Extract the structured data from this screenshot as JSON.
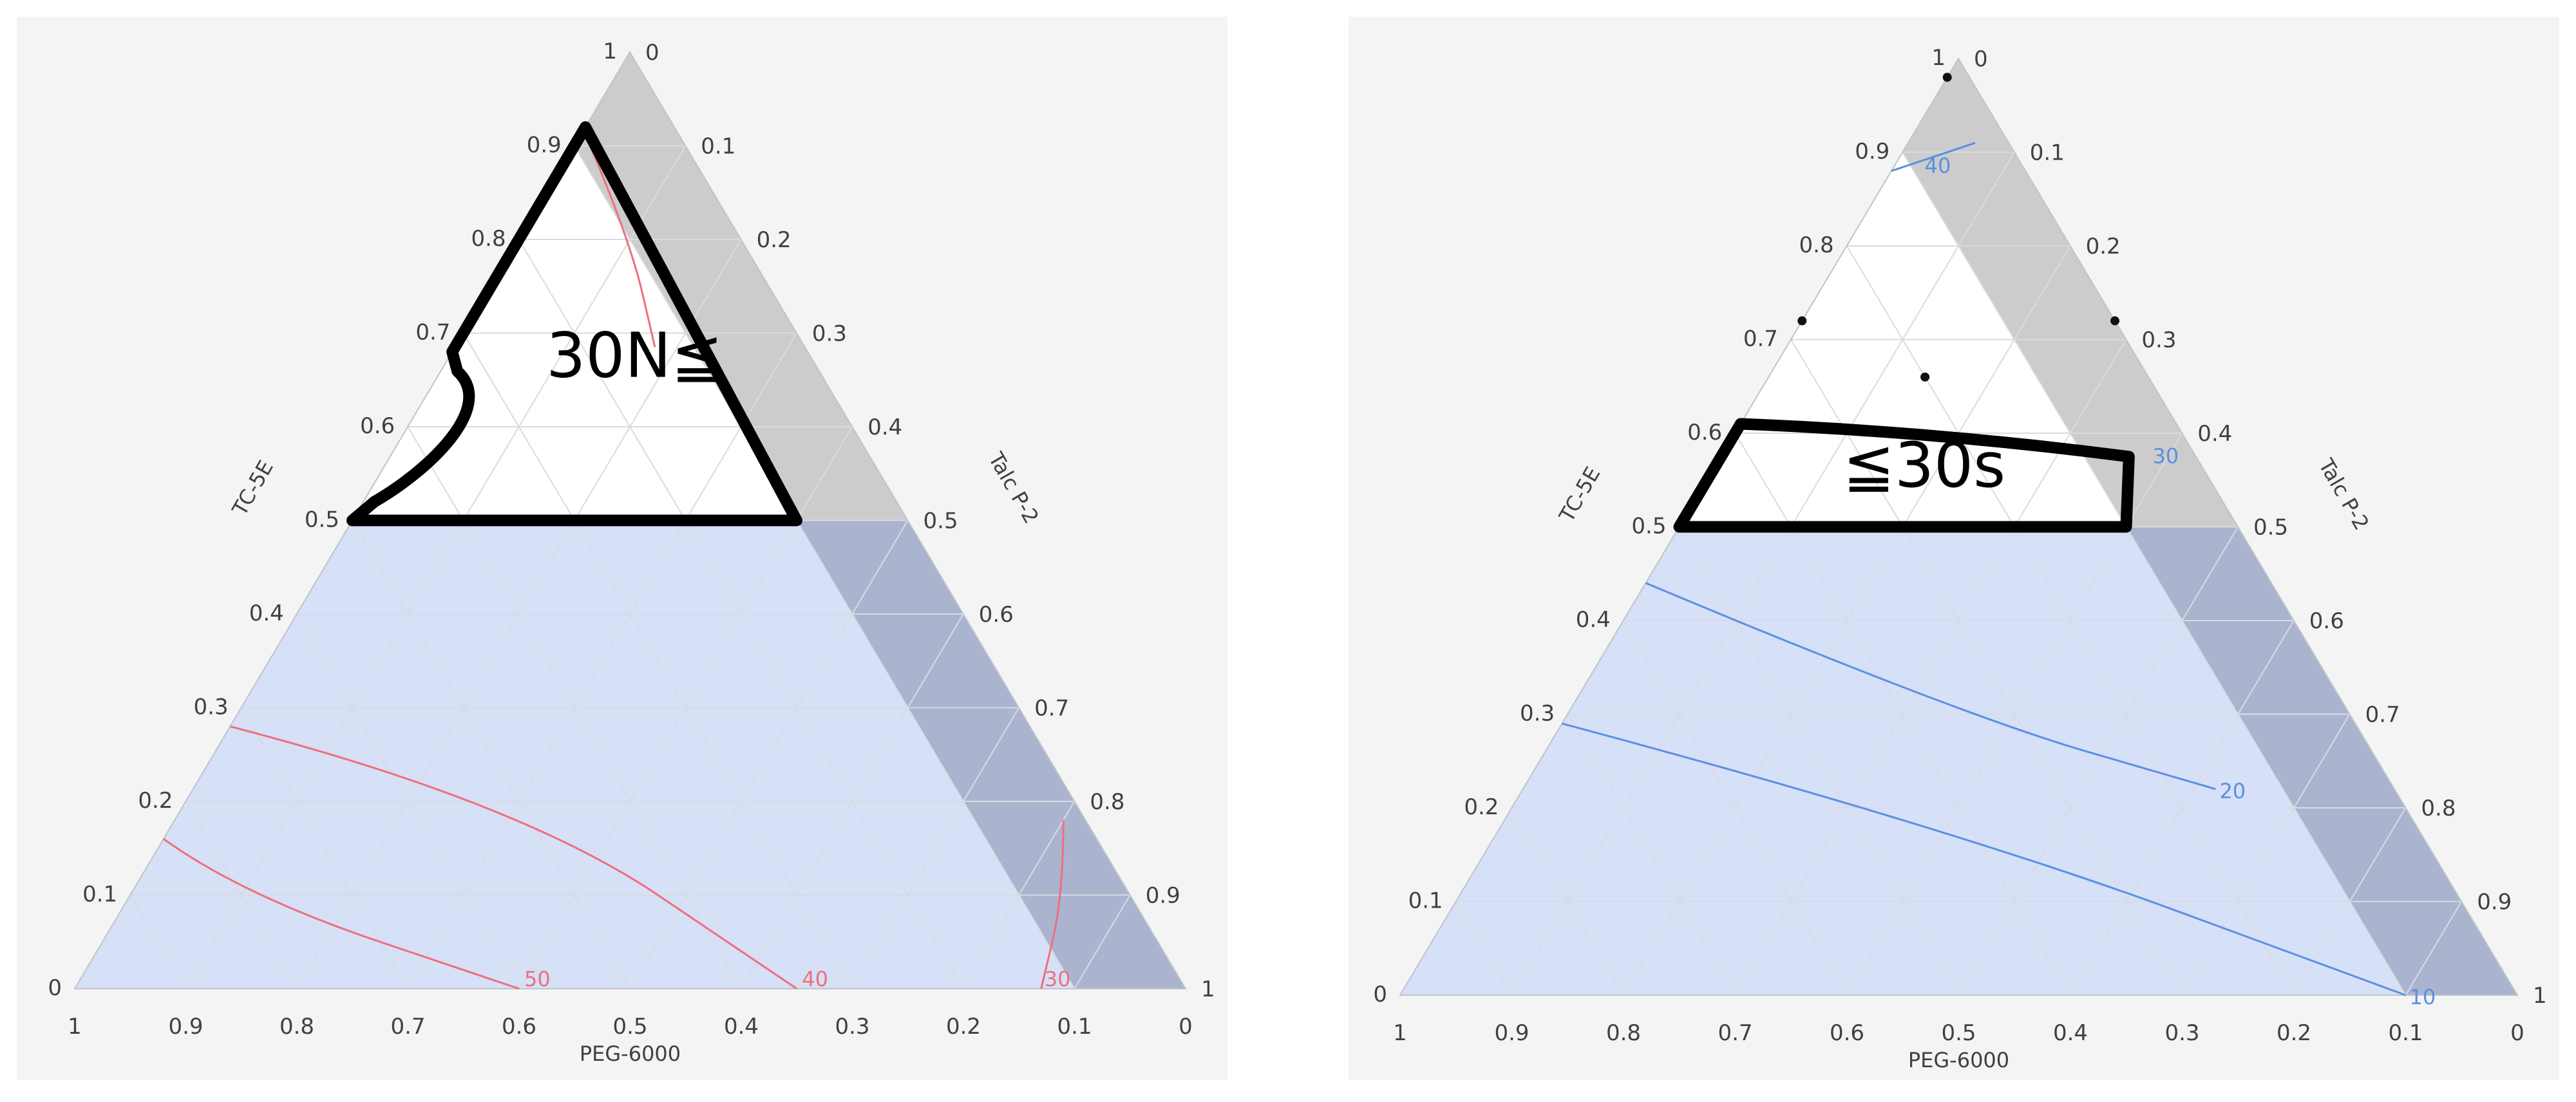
{
  "chart_data": [
    {
      "type": "ternary-contour",
      "axes": {
        "left": {
          "label": "TC-5E",
          "ticks": [
            "0",
            "0.1",
            "0.2",
            "0.3",
            "0.4",
            "0.5",
            "0.6",
            "0.7",
            "0.8",
            "0.9",
            "1"
          ]
        },
        "right": {
          "label": "Talc P-2",
          "ticks": [
            "0",
            "0.1",
            "0.2",
            "0.3",
            "0.4",
            "0.5",
            "0.6",
            "0.7",
            "0.8",
            "0.9",
            "1"
          ]
        },
        "bottom": {
          "label": "PEG-6000",
          "ticks": [
            "1",
            "0.9",
            "0.8",
            "0.7",
            "0.6",
            "0.5",
            "0.4",
            "0.3",
            "0.2",
            "0.1",
            "0"
          ]
        }
      },
      "grid": true,
      "shaded_region": {
        "description": "TC-5E ≤ 0.5",
        "color": "#d6e0f7"
      },
      "excluded_band": {
        "talc_min": 0.9,
        "color": "#c8c8c8"
      },
      "contour_color": "#ee6f7d",
      "contours": [
        {
          "level": "50",
          "points": [
            {
              "tc5e": 0.16,
              "talc": 0.0
            },
            {
              "tc5e": 0.1,
              "talc": 0.1
            },
            {
              "tc5e": 0.0,
              "talc": 0.4
            }
          ]
        },
        {
          "level": "40",
          "points": [
            {
              "tc5e": 0.28,
              "talc": 0.0
            },
            {
              "tc5e": 0.2,
              "talc": 0.3
            },
            {
              "tc5e": 0.0,
              "talc": 0.65
            }
          ]
        },
        {
          "level": "40",
          "points": [
            {
              "tc5e": 0.905,
              "talc": 0.01
            },
            {
              "tc5e": 0.8,
              "talc": 0.1
            },
            {
              "tc5e": 0.685,
              "talc": 0.18
            }
          ]
        },
        {
          "level": "30",
          "points": [
            {
              "tc5e": 0.18,
              "talc": 0.8
            },
            {
              "tc5e": 0.1,
              "talc": 0.84
            },
            {
              "tc5e": 0.0,
              "talc": 0.87
            }
          ]
        }
      ],
      "contour_labels": [
        "50",
        "40",
        "30"
      ],
      "highlight_region": {
        "label": "30N≦",
        "boundary": [
          {
            "tc5e": 0.92,
            "talc": 0.0
          },
          {
            "tc5e": 0.5,
            "talc": 0.4
          },
          {
            "tc5e": 0.5,
            "talc": 0.0
          },
          {
            "tc5e": 0.52,
            "talc": 0.01
          },
          {
            "tc5e": 0.6,
            "talc": 0.045
          },
          {
            "tc5e": 0.68,
            "talc": 0.0
          }
        ]
      },
      "design_points": []
    },
    {
      "type": "ternary-contour",
      "axes": {
        "left": {
          "label": "TC-5E",
          "ticks": [
            "0",
            "0.1",
            "0.2",
            "0.3",
            "0.4",
            "0.5",
            "0.6",
            "0.7",
            "0.8",
            "0.9",
            "1"
          ]
        },
        "right": {
          "label": "Talc P-2",
          "ticks": [
            "0",
            "0.1",
            "0.2",
            "0.3",
            "0.4",
            "0.5",
            "0.6",
            "0.7",
            "0.8",
            "0.9",
            "1"
          ]
        },
        "bottom": {
          "label": "PEG-6000",
          "ticks": [
            "1",
            "0.9",
            "0.8",
            "0.7",
            "0.6",
            "0.5",
            "0.4",
            "0.3",
            "0.2",
            "0.1",
            "0"
          ]
        }
      },
      "grid": true,
      "shaded_region": {
        "description": "TC-5E ≤ 0.5",
        "color": "#d6e0f7"
      },
      "excluded_band": {
        "talc_min": 0.9,
        "color": "#c8c8c8"
      },
      "contour_color": "#5b8fe0",
      "contours": [
        {
          "level": "40",
          "points": [
            {
              "tc5e": 0.88,
              "talc": 0.0
            },
            {
              "tc5e": 0.91,
              "talc": 0.06
            }
          ]
        },
        {
          "level": "30",
          "points": [
            {
              "tc5e": 0.575,
              "talc": 0.365
            },
            {
              "tc5e": 0.57,
              "talc": 0.37
            }
          ]
        },
        {
          "level": "20",
          "points": [
            {
              "tc5e": 0.44,
              "talc": 0.0
            },
            {
              "tc5e": 0.3,
              "talc": 0.35
            },
            {
              "tc5e": 0.22,
              "talc": 0.62
            }
          ]
        },
        {
          "level": "10",
          "points": [
            {
              "tc5e": 0.29,
              "talc": 0.0
            },
            {
              "tc5e": 0.18,
              "talc": 0.4
            },
            {
              "tc5e": 0.0,
              "talc": 0.9
            }
          ]
        }
      ],
      "contour_labels": [
        "40",
        "30",
        "20",
        "10"
      ],
      "highlight_region": {
        "label": "≦30s",
        "boundary": [
          {
            "tc5e": 0.5,
            "talc": 0.0
          },
          {
            "tc5e": 0.61,
            "talc": 0.0
          },
          {
            "tc5e": 0.6,
            "talc": 0.2
          },
          {
            "tc5e": 0.57,
            "talc": 0.37
          },
          {
            "tc5e": 0.5,
            "talc": 0.4
          }
        ]
      },
      "design_points": [
        {
          "tc5e": 0.98,
          "talc": 0.0
        },
        {
          "tc5e": 0.72,
          "talc": 0.0
        },
        {
          "tc5e": 0.72,
          "talc": 0.28
        },
        {
          "tc5e": 0.66,
          "talc": 0.14
        }
      ]
    }
  ]
}
